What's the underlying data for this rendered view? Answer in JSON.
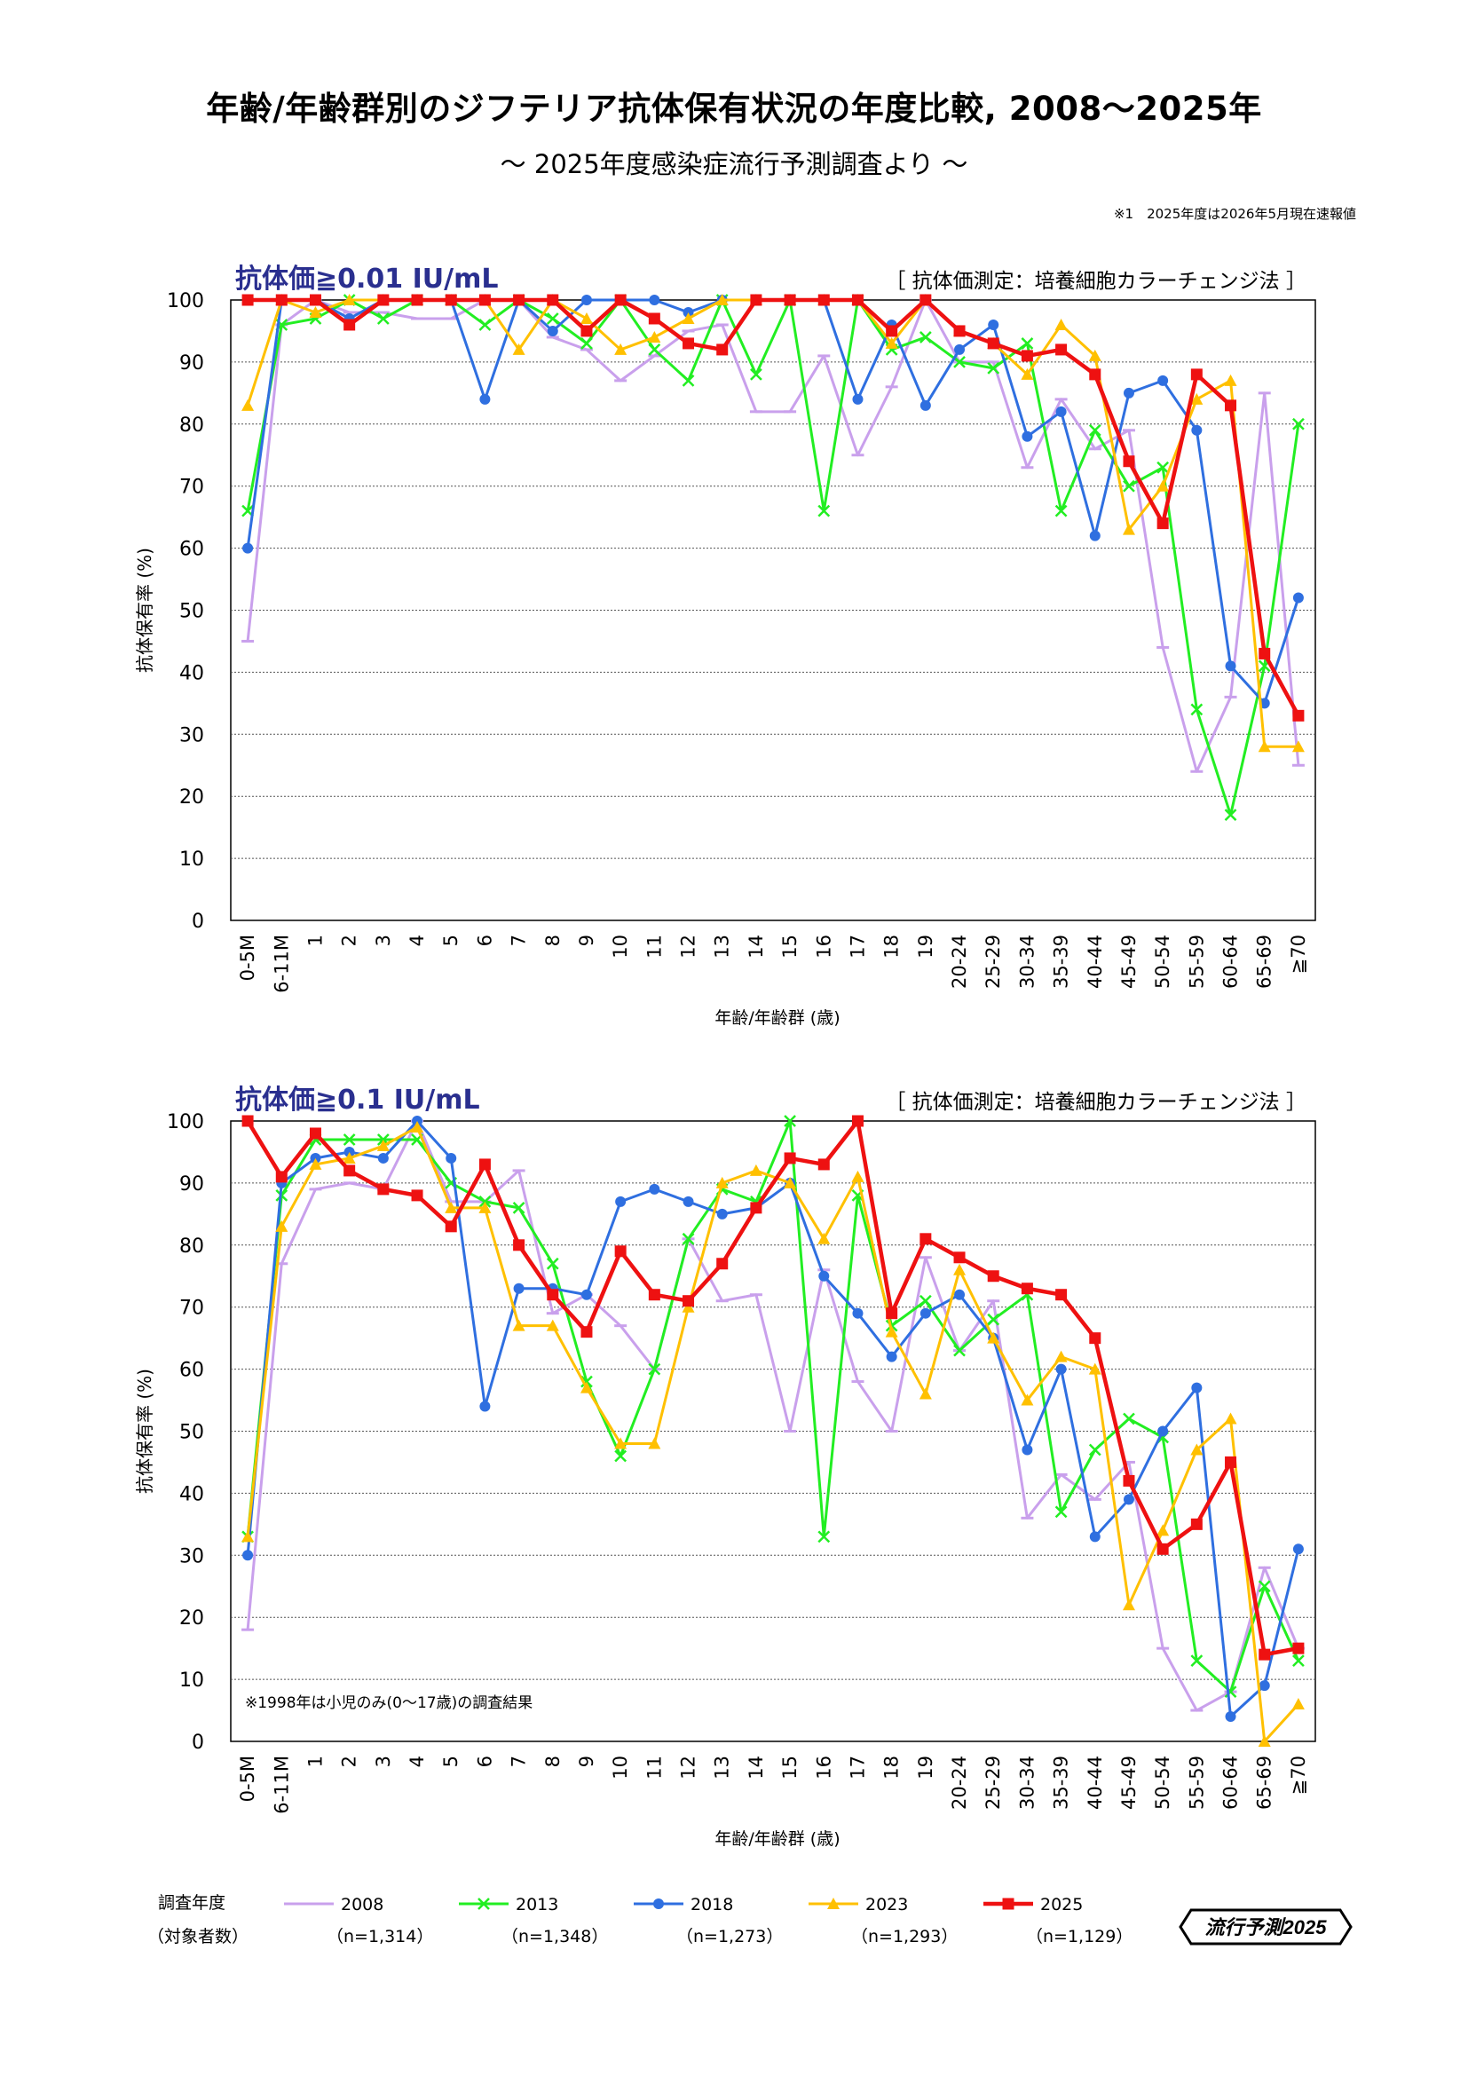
{
  "title": "年齢/年齢群別のジフテリア抗体保有状況の年度比較, 2008～2025年",
  "subtitle": "～ 2025年度感染症流行予測調査より ～",
  "note": "※1　2025年度は2026年5月現在速報値",
  "colors": {
    "2008": "#c9a0ec",
    "2013": "#22ee22",
    "2018": "#2f6fe0",
    "2023": "#ffc000",
    "2025": "#ee1111"
  },
  "legend": {
    "year_label": "調査年度",
    "n_label": "（対象者数）",
    "entries": [
      {
        "year": "2008",
        "n": "（n=1,314）",
        "marker": "dash"
      },
      {
        "year": "2013",
        "n": "（n=1,348）",
        "marker": "x"
      },
      {
        "year": "2018",
        "n": "（n=1,273）",
        "marker": "circle"
      },
      {
        "year": "2023",
        "n": "（n=1,293）",
        "marker": "triangle"
      },
      {
        "year": "2025",
        "n": "（n=1,129）",
        "marker": "square"
      }
    ]
  },
  "logo_text": "流行予測2025",
  "chart_data": [
    {
      "type": "line",
      "title": "抗体価≧0.01 IU/mL",
      "method": "［ 抗体価測定：培養細胞カラーチェンジ法 ］",
      "xlabel": "年齢/年齢群 (歳)",
      "ylabel": "抗体保有率 (%)",
      "ylim": [
        0,
        100
      ],
      "yticks": [
        0,
        10,
        20,
        30,
        40,
        50,
        60,
        70,
        80,
        90,
        100
      ],
      "grid": true,
      "annotation": "",
      "categories": [
        "0-5M",
        "6-11M",
        "1",
        "2",
        "3",
        "4",
        "5",
        "6",
        "7",
        "8",
        "9",
        "10",
        "11",
        "12",
        "13",
        "14",
        "15",
        "16",
        "17",
        "18",
        "19",
        "20-24",
        "25-29",
        "30-34",
        "35-39",
        "40-44",
        "45-49",
        "50-54",
        "55-59",
        "60-64",
        "65-69",
        "≧70"
      ],
      "series": [
        {
          "name": "2008",
          "values": [
            45,
            96,
            100,
            98,
            98,
            97,
            97,
            100,
            100,
            94,
            92,
            87,
            91,
            95,
            96,
            82,
            82,
            91,
            75,
            86,
            100,
            90,
            90,
            73,
            84,
            76,
            79,
            44,
            24,
            36,
            85,
            25
          ]
        },
        {
          "name": "2013",
          "values": [
            66,
            96,
            97,
            100,
            97,
            100,
            100,
            96,
            100,
            97,
            93,
            100,
            92,
            87,
            100,
            88,
            100,
            66,
            100,
            92,
            94,
            90,
            89,
            93,
            66,
            79,
            70,
            73,
            34,
            17,
            41,
            80
          ]
        },
        {
          "name": "2018",
          "values": [
            60,
            100,
            100,
            97,
            100,
            100,
            100,
            84,
            100,
            95,
            100,
            100,
            100,
            98,
            100,
            100,
            100,
            100,
            84,
            96,
            83,
            92,
            96,
            78,
            82,
            62,
            85,
            87,
            79,
            41,
            35,
            52
          ]
        },
        {
          "name": "2023",
          "values": [
            83,
            100,
            98,
            100,
            100,
            100,
            100,
            100,
            92,
            100,
            97,
            92,
            94,
            97,
            100,
            100,
            100,
            100,
            100,
            93,
            100,
            95,
            93,
            88,
            96,
            91,
            63,
            70,
            84,
            87,
            28,
            28
          ]
        },
        {
          "name": "2025",
          "values": [
            100,
            100,
            100,
            96,
            100,
            100,
            100,
            100,
            100,
            100,
            95,
            100,
            97,
            93,
            92,
            100,
            100,
            100,
            100,
            95,
            100,
            95,
            93,
            91,
            92,
            88,
            74,
            64,
            88,
            83,
            43,
            33
          ]
        }
      ]
    },
    {
      "type": "line",
      "title": "抗体価≧0.1 IU/mL",
      "method": "［ 抗体価測定：培養細胞カラーチェンジ法 ］",
      "xlabel": "年齢/年齢群 (歳)",
      "ylabel": "抗体保有率 (%)",
      "ylim": [
        0,
        100
      ],
      "yticks": [
        0,
        10,
        20,
        30,
        40,
        50,
        60,
        70,
        80,
        90,
        100
      ],
      "grid": true,
      "annotation": "※1998年は小児のみ(0～17歳)の調査結果",
      "categories": [
        "0-5M",
        "6-11M",
        "1",
        "2",
        "3",
        "4",
        "5",
        "6",
        "7",
        "8",
        "9",
        "10",
        "11",
        "12",
        "13",
        "14",
        "15",
        "16",
        "17",
        "18",
        "19",
        "20-24",
        "25-29",
        "30-34",
        "35-39",
        "40-44",
        "45-49",
        "50-54",
        "55-59",
        "60-64",
        "65-69",
        "≧70"
      ],
      "series": [
        {
          "name": "2008",
          "values": [
            18,
            77,
            89,
            90,
            89,
            100,
            87,
            87,
            92,
            69,
            72,
            67,
            60,
            81,
            71,
            72,
            50,
            76,
            58,
            50,
            78,
            63,
            71,
            36,
            43,
            39,
            45,
            15,
            5,
            8,
            28,
            15
          ]
        },
        {
          "name": "2013",
          "values": [
            33,
            88,
            97,
            97,
            97,
            97,
            90,
            87,
            86,
            77,
            58,
            46,
            60,
            81,
            89,
            87,
            100,
            33,
            88,
            67,
            71,
            63,
            68,
            72,
            37,
            47,
            52,
            49,
            13,
            8,
            25,
            13
          ]
        },
        {
          "name": "2018",
          "values": [
            30,
            90,
            94,
            95,
            94,
            100,
            94,
            54,
            73,
            73,
            72,
            87,
            89,
            87,
            85,
            86,
            90,
            75,
            69,
            62,
            69,
            72,
            65,
            47,
            60,
            33,
            39,
            50,
            57,
            4,
            9,
            31
          ]
        },
        {
          "name": "2023",
          "values": [
            33,
            83,
            93,
            94,
            96,
            99,
            86,
            86,
            67,
            67,
            57,
            48,
            48,
            70,
            90,
            92,
            90,
            81,
            91,
            66,
            56,
            76,
            65,
            55,
            62,
            60,
            22,
            34,
            47,
            52,
            0,
            6
          ]
        },
        {
          "name": "2025",
          "values": [
            100,
            91,
            98,
            92,
            89,
            88,
            83,
            93,
            80,
            72,
            66,
            79,
            72,
            71,
            77,
            86,
            94,
            93,
            100,
            69,
            81,
            78,
            75,
            73,
            72,
            65,
            42,
            31,
            35,
            45,
            14,
            15
          ]
        }
      ]
    }
  ]
}
